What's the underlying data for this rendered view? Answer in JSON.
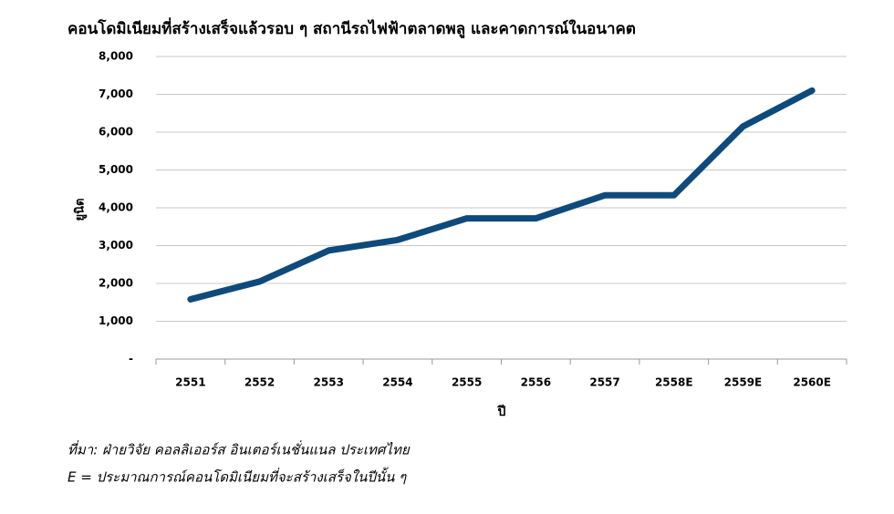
{
  "chart_data": {
    "type": "line",
    "title": "คอนโดมิเนียมที่สร้างเสร็จแล้วรอบ ๆ สถานีรถไฟฟ้าตลาดพลู และคาดการณ์ในอนาคต",
    "x_label": "ปี",
    "y_label": "ยูนิต",
    "categories": [
      "2551",
      "2552",
      "2553",
      "2554",
      "2555",
      "2556",
      "2557",
      "2558E",
      "2559E",
      "2560E"
    ],
    "series": [
      {
        "color": "#0f4a7c",
        "values": [
          1580,
          2050,
          2870,
          3150,
          3720,
          3720,
          4330,
          4330,
          6150,
          7100
        ]
      }
    ],
    "ylim": [
      0,
      8000
    ],
    "yticks": [
      {
        "value": 0,
        "label": "-"
      },
      {
        "value": 1000,
        "label": "1,000"
      },
      {
        "value": 2000,
        "label": "2,000"
      },
      {
        "value": 3000,
        "label": "3,000"
      },
      {
        "value": 4000,
        "label": "4,000"
      },
      {
        "value": 5000,
        "label": "5,000"
      },
      {
        "value": 6000,
        "label": "6,000"
      },
      {
        "value": 7000,
        "label": "7,000"
      },
      {
        "value": 8000,
        "label": "8,000"
      }
    ],
    "grid": true,
    "source": "ที่มา: ฝ่ายวิจัย คอลลิเออร์ส อินเตอร์เนชั่นแนล ประเทศไทย",
    "note": "E = ประมาณการณ์คอนโดมิเนียมที่จะสร้างเสร็จในปีนั้น ๆ"
  }
}
